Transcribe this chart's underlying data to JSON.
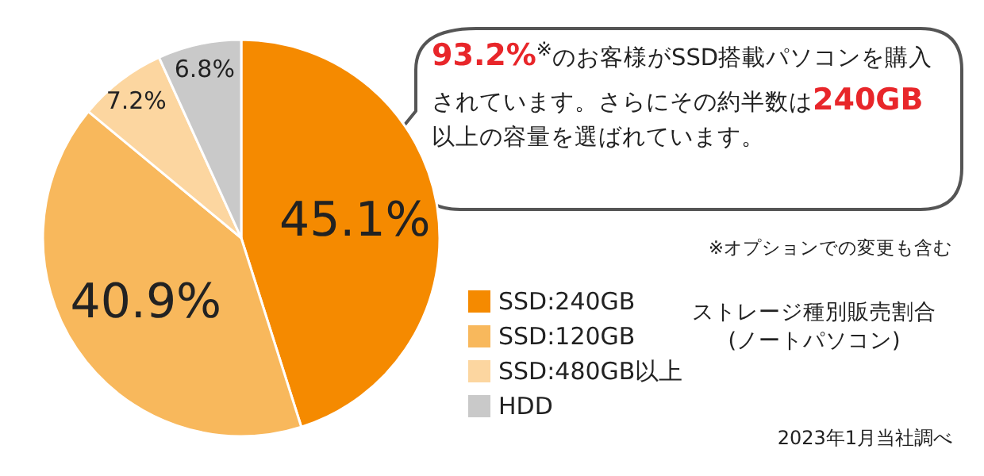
{
  "chart_data": {
    "type": "pie",
    "title": "ストレージ種別販売割合",
    "subtitle": "(ノートパソコン)",
    "categories": [
      "SSD:240GB",
      "SSD:120GB",
      "SSD:480GB以上",
      "HDD"
    ],
    "values": [
      45.1,
      40.9,
      7.2,
      6.8
    ],
    "colors": [
      "#f58a00",
      "#f8b85c",
      "#fcd6a0",
      "#c9c9c9"
    ],
    "value_labels": [
      "45.1%",
      "40.9%",
      "7.2%",
      "6.8%"
    ],
    "legend": "right",
    "annotations": [
      "93.2%$^{※}$のお客様がSSD搭載パソコンを購入されています。",
      "さらにその約半数は240GB以上の容量を選ばれています。",
      "※オプションでの変更も含む",
      "2023年1月当社調べ"
    ]
  }
}
